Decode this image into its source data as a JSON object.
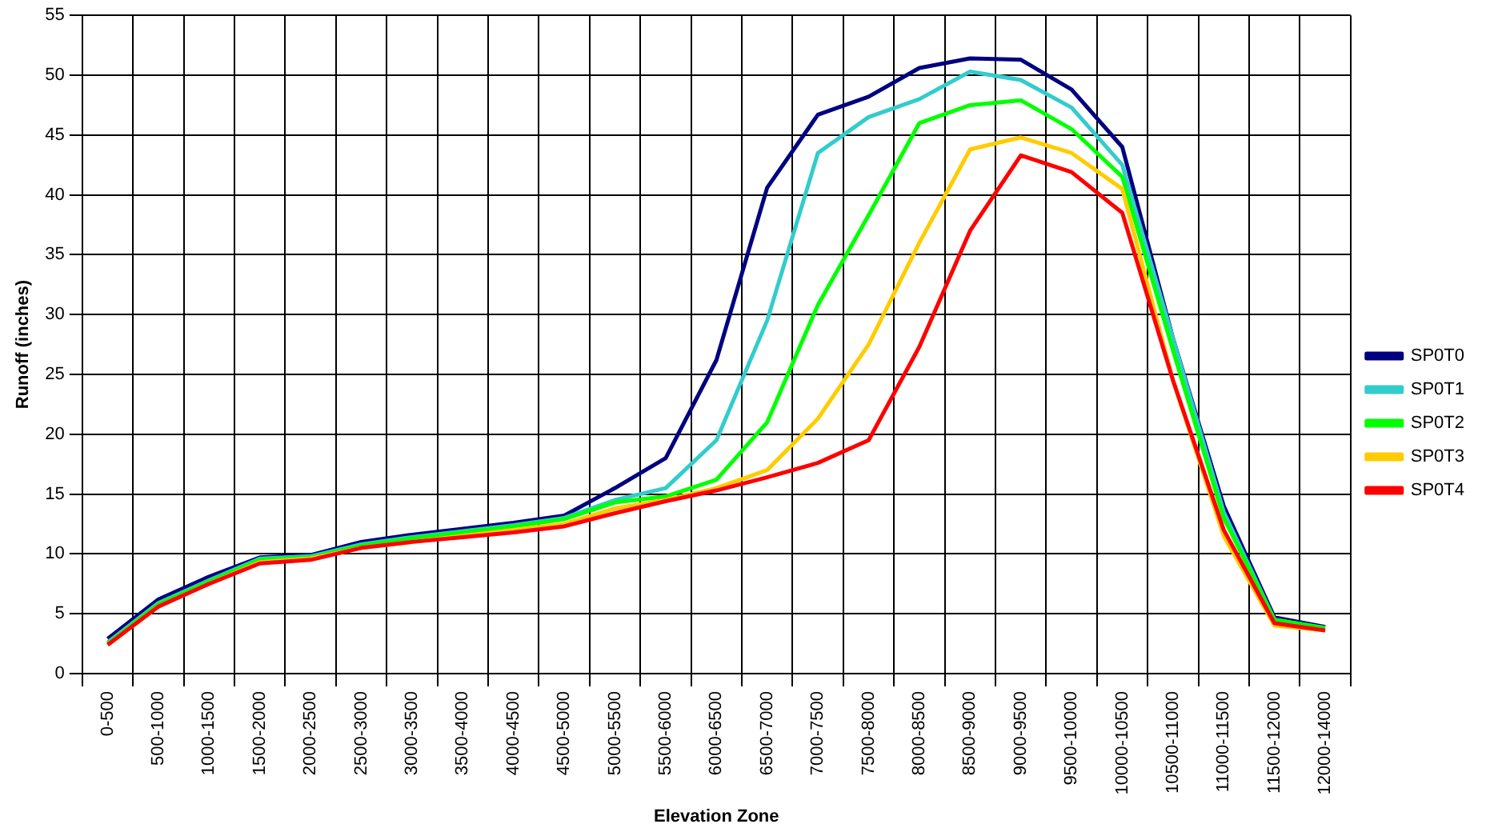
{
  "chart_data": {
    "type": "line",
    "xlabel": "Elevation Zone",
    "ylabel": "Runoff (inches)",
    "categories": [
      "0-500",
      "500-1000",
      "1000-1500",
      "1500-2000",
      "2000-2500",
      "2500-3000",
      "3000-3500",
      "3500-4000",
      "4000-4500",
      "4500-5000",
      "5000-5500",
      "5500-6000",
      "6000-6500",
      "6500-7000",
      "7000-7500",
      "7500-8000",
      "8000-8500",
      "8500-9000",
      "9000-9500",
      "9500-10000",
      "10000-10500",
      "10500-11000",
      "11000-11500",
      "11500-12000",
      "12000-14000"
    ],
    "series": [
      {
        "name": "SP0T0",
        "color": "#000080",
        "values": [
          2.9,
          6.2,
          8.1,
          9.7,
          9.9,
          11.0,
          11.6,
          12.1,
          12.6,
          13.2,
          15.5,
          18.0,
          26.2,
          40.6,
          46.7,
          48.2,
          50.6,
          51.4,
          51.3,
          48.8,
          44.0,
          28.0,
          14.0,
          4.7,
          3.9
        ]
      },
      {
        "name": "SP0T1",
        "color": "#33cccc",
        "values": [
          2.6,
          5.9,
          7.8,
          9.6,
          9.8,
          10.8,
          11.4,
          11.9,
          12.4,
          13.0,
          14.5,
          15.5,
          19.5,
          29.5,
          43.5,
          46.5,
          48.0,
          50.3,
          49.6,
          47.3,
          42.5,
          28.0,
          13.5,
          4.5,
          3.8
        ]
      },
      {
        "name": "SP0T2",
        "color": "#00ff00",
        "values": [
          2.5,
          5.8,
          7.7,
          9.5,
          9.7,
          10.7,
          11.3,
          11.8,
          12.3,
          12.9,
          14.3,
          14.8,
          16.2,
          21.0,
          30.8,
          38.3,
          46.0,
          47.5,
          47.9,
          45.5,
          41.5,
          27.0,
          13.0,
          4.5,
          3.8
        ]
      },
      {
        "name": "SP0T3",
        "color": "#ffcc00",
        "values": [
          2.4,
          5.6,
          7.5,
          9.3,
          9.6,
          10.5,
          11.0,
          11.5,
          12.0,
          12.5,
          13.8,
          14.5,
          15.5,
          17.0,
          21.3,
          27.5,
          36.0,
          43.8,
          44.8,
          43.5,
          40.5,
          24.5,
          11.5,
          4.0,
          3.6
        ]
      },
      {
        "name": "SP0T4",
        "color": "#ff0000",
        "values": [
          2.4,
          5.6,
          7.5,
          9.2,
          9.5,
          10.5,
          11.0,
          11.4,
          11.8,
          12.3,
          13.4,
          14.4,
          15.3,
          16.4,
          17.6,
          19.5,
          27.3,
          37.0,
          43.3,
          41.9,
          38.5,
          24.5,
          12.0,
          4.2,
          3.6
        ]
      }
    ],
    "ylim": [
      0,
      55
    ],
    "yticks": [
      0,
      5,
      10,
      15,
      20,
      25,
      30,
      35,
      40,
      45,
      50,
      55
    ],
    "grid": true,
    "legend": "right",
    "marker": "none",
    "line_style": "solid"
  }
}
